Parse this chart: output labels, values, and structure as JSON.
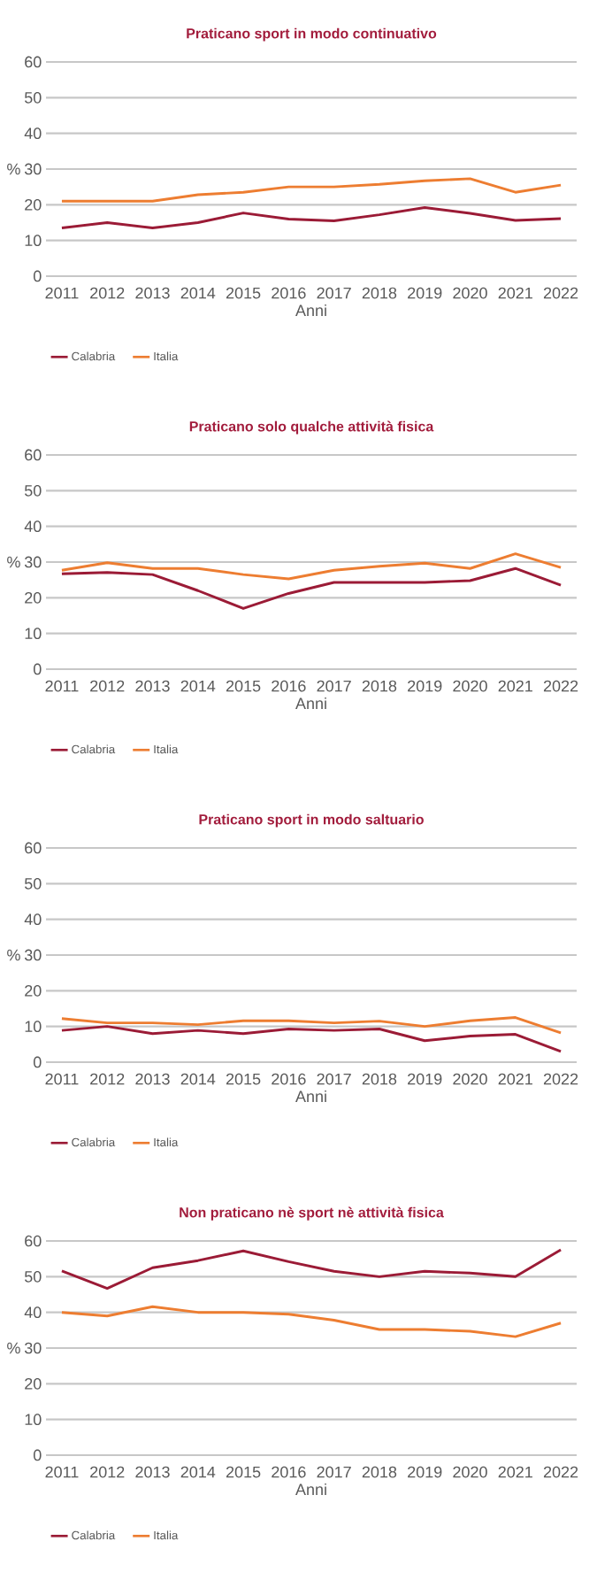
{
  "chart_data": [
    {
      "type": "line",
      "title": "Praticano sport in modo continuativo",
      "xlabel": "Anni",
      "ylabel": "%",
      "categories": [
        "2011",
        "2012",
        "2013",
        "2014",
        "2015",
        "2016",
        "2017",
        "2018",
        "2019",
        "2020",
        "2021",
        "2022"
      ],
      "ylim": [
        0,
        60
      ],
      "yticks": [
        0,
        10,
        20,
        30,
        40,
        50,
        60
      ],
      "grid": "y",
      "legend": "bottom",
      "series": [
        {
          "name": "Calabria",
          "color": "#9b1b36",
          "values": [
            13.5,
            15,
            13.5,
            15,
            17.7,
            16,
            15.5,
            17.2,
            19.2,
            17.6,
            15.6,
            16.1
          ]
        },
        {
          "name": "Italia",
          "color": "#ed7d31",
          "values": [
            21,
            21,
            21,
            22.8,
            23.5,
            25,
            25,
            25.7,
            26.7,
            27.3,
            23.5,
            25.5
          ]
        }
      ]
    },
    {
      "type": "line",
      "title": "Praticano solo qualche attività fisica",
      "xlabel": "Anni",
      "ylabel": "%",
      "categories": [
        "2011",
        "2012",
        "2013",
        "2014",
        "2015",
        "2016",
        "2017",
        "2018",
        "2019",
        "2020",
        "2021",
        "2022"
      ],
      "ylim": [
        0,
        60
      ],
      "yticks": [
        0,
        10,
        20,
        30,
        40,
        50,
        60
      ],
      "grid": "y",
      "legend": "bottom",
      "series": [
        {
          "name": "Calabria",
          "color": "#9b1b36",
          "values": [
            26.7,
            27.1,
            26.5,
            22,
            17,
            21.2,
            24.3,
            24.3,
            24.3,
            24.8,
            28.2,
            23.5
          ]
        },
        {
          "name": "Italia",
          "color": "#ed7d31",
          "values": [
            27.7,
            29.8,
            28.2,
            28.2,
            26.5,
            25.3,
            27.7,
            28.8,
            29.7,
            28.2,
            32.3,
            28.5
          ]
        }
      ]
    },
    {
      "type": "line",
      "title": "Praticano sport in modo saltuario",
      "xlabel": "Anni",
      "ylabel": "%",
      "categories": [
        "2011",
        "2012",
        "2013",
        "2014",
        "2015",
        "2016",
        "2017",
        "2018",
        "2019",
        "2020",
        "2021",
        "2022"
      ],
      "ylim": [
        0,
        60
      ],
      "yticks": [
        0,
        10,
        20,
        30,
        40,
        50,
        60
      ],
      "grid": "y",
      "legend": "bottom",
      "series": [
        {
          "name": "Calabria",
          "color": "#9b1b36",
          "values": [
            8.9,
            10,
            8,
            8.9,
            8,
            9.3,
            8.9,
            9.3,
            6,
            7.3,
            7.8,
            3
          ]
        },
        {
          "name": "Italia",
          "color": "#ed7d31",
          "values": [
            12.2,
            11,
            11,
            10.5,
            11.6,
            11.6,
            11,
            11.5,
            10,
            11.6,
            12.5,
            8.2
          ]
        }
      ]
    },
    {
      "type": "line",
      "title": "Non praticano nè sport nè attività fisica",
      "xlabel": "Anni",
      "ylabel": "%",
      "categories": [
        "2011",
        "2012",
        "2013",
        "2014",
        "2015",
        "2016",
        "2017",
        "2018",
        "2019",
        "2020",
        "2021",
        "2022"
      ],
      "ylim": [
        0,
        60
      ],
      "yticks": [
        0,
        10,
        20,
        30,
        40,
        50,
        60
      ],
      "grid": "y",
      "legend": "bottom",
      "series": [
        {
          "name": "Calabria",
          "color": "#9b1b36",
          "values": [
            51.6,
            46.7,
            52.5,
            54.5,
            57.2,
            54.2,
            51.5,
            50,
            51.5,
            51,
            50,
            57.5
          ]
        },
        {
          "name": "Italia",
          "color": "#ed7d31",
          "values": [
            40,
            39,
            41.6,
            40,
            40,
            39.5,
            37.8,
            35.2,
            35.2,
            34.7,
            33.2,
            37
          ]
        }
      ]
    }
  ]
}
